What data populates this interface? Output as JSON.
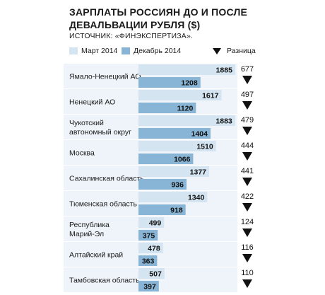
{
  "title": "ЗАРПЛАТЫ РОССИЯН ДО И ПОСЛЕ ДЕВАЛЬВАЦИИ РУБЛЯ ($)",
  "source": "ИСТОЧНИК: «ФИНЭКСПЕРТИЗА».",
  "legend": {
    "march": "Март 2014",
    "december": "Декабрь 2014",
    "difference": "Разница"
  },
  "colors": {
    "march": "#d4e4f0",
    "december": "#88b5d6",
    "band": "#eef4f9",
    "triangle": "#111111"
  },
  "chart_data": {
    "type": "bar",
    "orientation": "horizontal",
    "categories": [
      [
        "Ямало-Ненецкий  АО"
      ],
      [
        "Ненецкий АО"
      ],
      [
        "Чукотский",
        "автономный округ"
      ],
      [
        "Москва"
      ],
      [
        "Сахалинская область"
      ],
      [
        "Тюменская область"
      ],
      [
        "Республика",
        "Марий-Эл"
      ],
      [
        "Алтайский край"
      ],
      [
        "Тамбовская область"
      ]
    ],
    "series": [
      {
        "name": "Март 2014",
        "values": [
          1885,
          1617,
          1883,
          1510,
          1377,
          1340,
          499,
          478,
          507
        ]
      },
      {
        "name": "Декабрь 2014",
        "values": [
          1208,
          1120,
          1404,
          1066,
          936,
          918,
          375,
          363,
          397
        ]
      },
      {
        "name": "Разница",
        "values": [
          677,
          497,
          479,
          444,
          441,
          422,
          124,
          116,
          110
        ]
      }
    ],
    "xlim": [
      0,
      1900
    ]
  }
}
